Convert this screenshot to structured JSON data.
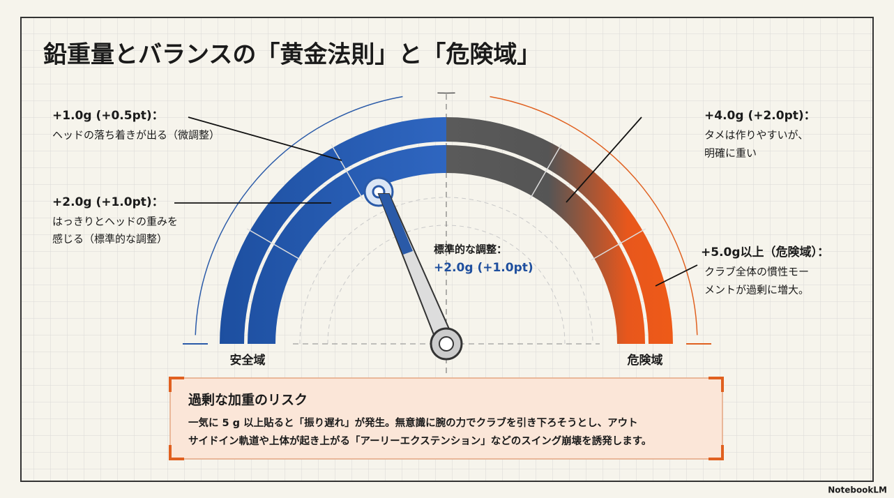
{
  "title": "鉛重量とバランスの「黄金法則」と「危険域」",
  "annotations": [
    {
      "heading": "+1.0g (+0.5pt)：",
      "lines": [
        "ヘッドの落ち着きが出る（微調整）"
      ]
    },
    {
      "heading": "+2.0g (+1.0pt)：",
      "lines": [
        "はっきりとヘッドの重みを",
        "感じる（標準的な調整）"
      ]
    },
    {
      "heading": "+4.0g (+2.0pt)：",
      "lines": [
        "タメは作りやすいが、",
        "明確に重い"
      ]
    },
    {
      "heading": "+5.0g以上（危険域）：",
      "lines": [
        "クラブ全体の慣性モー",
        "メントが過剰に増大。"
      ]
    }
  ],
  "center_note": {
    "heading": "標準的な調整：",
    "value": "+2.0g (+1.0pt)"
  },
  "gauge": {
    "left_label": "安全域",
    "right_label": "危険域"
  },
  "risk": {
    "title": "過剰な加重のリスク",
    "lines": [
      "一気に 5 g 以上貼ると「振り遅れ」が発生。無意識に腕の力でクラブを引き下ろそうとし、アウト",
      "サイドイン軌道や上体が起き上がる「アーリーエクステンション」などのスイング崩壊を誘発します。"
    ]
  },
  "footer": "NotebookLM"
}
